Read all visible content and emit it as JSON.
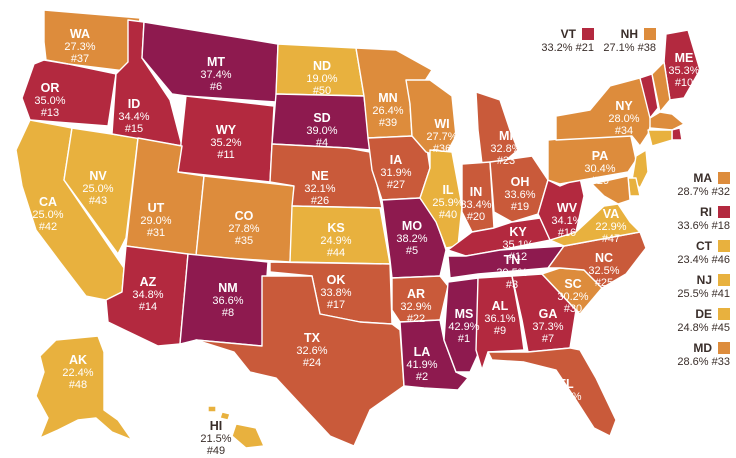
{
  "colors": {
    "lightest": "#e8b13e",
    "light": "#dd8c3c",
    "medium": "#c95a3a",
    "dark": "#b3293f",
    "darkest": "#8e1a4f"
  },
  "states": {
    "WA": {
      "abbr": "WA",
      "value": "27.3%",
      "rank": "#37",
      "tier": "light"
    },
    "OR": {
      "abbr": "OR",
      "value": "35.0%",
      "rank": "#13",
      "tier": "dark"
    },
    "CA": {
      "abbr": "CA",
      "value": "25.0%",
      "rank": "#42",
      "tier": "lightest"
    },
    "ID": {
      "abbr": "ID",
      "value": "34.4%",
      "rank": "#15",
      "tier": "dark"
    },
    "NV": {
      "abbr": "NV",
      "value": "25.0%",
      "rank": "#43",
      "tier": "lightest"
    },
    "MT": {
      "abbr": "MT",
      "value": "37.4%",
      "rank": "#6",
      "tier": "darkest"
    },
    "WY": {
      "abbr": "WY",
      "value": "35.2%",
      "rank": "#11",
      "tier": "dark"
    },
    "UT": {
      "abbr": "UT",
      "value": "29.0%",
      "rank": "#31",
      "tier": "light"
    },
    "AZ": {
      "abbr": "AZ",
      "value": "34.8%",
      "rank": "#14",
      "tier": "dark"
    },
    "CO": {
      "abbr": "CO",
      "value": "27.8%",
      "rank": "#35",
      "tier": "light"
    },
    "NM": {
      "abbr": "NM",
      "value": "36.6%",
      "rank": "#8",
      "tier": "darkest"
    },
    "ND": {
      "abbr": "ND",
      "value": "19.0%",
      "rank": "#50",
      "tier": "lightest"
    },
    "SD": {
      "abbr": "SD",
      "value": "39.0%",
      "rank": "#4",
      "tier": "darkest"
    },
    "NE": {
      "abbr": "NE",
      "value": "32.1%",
      "rank": "#26",
      "tier": "medium"
    },
    "KS": {
      "abbr": "KS",
      "value": "24.9%",
      "rank": "#44",
      "tier": "lightest"
    },
    "OK": {
      "abbr": "OK",
      "value": "33.8%",
      "rank": "#17",
      "tier": "medium"
    },
    "TX": {
      "abbr": "TX",
      "value": "32.6%",
      "rank": "#24",
      "tier": "medium"
    },
    "MN": {
      "abbr": "MN",
      "value": "26.4%",
      "rank": "#39",
      "tier": "light"
    },
    "IA": {
      "abbr": "IA",
      "value": "31.9%",
      "rank": "#27",
      "tier": "medium"
    },
    "MO": {
      "abbr": "MO",
      "value": "38.2%",
      "rank": "#5",
      "tier": "darkest"
    },
    "AR": {
      "abbr": "AR",
      "value": "32.9%",
      "rank": "#22",
      "tier": "medium"
    },
    "LA": {
      "abbr": "LA",
      "value": "41.9%",
      "rank": "#2",
      "tier": "darkest"
    },
    "WI": {
      "abbr": "WI",
      "value": "27.7%",
      "rank": "#36",
      "tier": "light"
    },
    "IL": {
      "abbr": "IL",
      "value": "25.9%",
      "rank": "#40",
      "tier": "lightest"
    },
    "MI": {
      "abbr": "MI",
      "value": "32.8%",
      "rank": "#23",
      "tier": "medium"
    },
    "IN": {
      "abbr": "IN",
      "value": "33.4%",
      "rank": "#20",
      "tier": "medium"
    },
    "OH": {
      "abbr": "OH",
      "value": "33.6%",
      "rank": "#19",
      "tier": "medium"
    },
    "KY": {
      "abbr": "KY",
      "value": "35.1%",
      "rank": "#12",
      "tier": "dark"
    },
    "TN": {
      "abbr": "TN",
      "value": "39.5%",
      "rank": "#3",
      "tier": "darkest"
    },
    "MS": {
      "abbr": "MS",
      "value": "42.9%",
      "rank": "#1",
      "tier": "darkest"
    },
    "AL": {
      "abbr": "AL",
      "value": "36.1%",
      "rank": "#9",
      "tier": "dark"
    },
    "GA": {
      "abbr": "GA",
      "value": "37.3%",
      "rank": "#7",
      "tier": "dark"
    },
    "FL": {
      "abbr": "FL",
      "value": "31.5%",
      "rank": "#28",
      "tier": "medium"
    },
    "SC": {
      "abbr": "SC",
      "value": "30.2%",
      "rank": "#30",
      "tier": "light"
    },
    "NC": {
      "abbr": "NC",
      "value": "32.5%",
      "rank": "#25",
      "tier": "medium"
    },
    "VA": {
      "abbr": "VA",
      "value": "22.9%",
      "rank": "#47",
      "tier": "lightest"
    },
    "WV": {
      "abbr": "WV",
      "value": "34.1%",
      "rank": "#16",
      "tier": "dark"
    },
    "PA": {
      "abbr": "PA",
      "value": "30.4%",
      "rank": "#29",
      "tier": "light"
    },
    "NY": {
      "abbr": "NY",
      "value": "28.0%",
      "rank": "#34",
      "tier": "light"
    },
    "ME": {
      "abbr": "ME",
      "value": "35.3%",
      "rank": "#10",
      "tier": "dark"
    },
    "AK": {
      "abbr": "AK",
      "value": "22.4%",
      "rank": "#48",
      "tier": "lightest"
    },
    "HI": {
      "abbr": "HI",
      "value": "21.5%",
      "rank": "#49",
      "tier": "lightest"
    }
  },
  "small_states": {
    "VT": {
      "abbr": "VT",
      "value": "33.2%",
      "rank": "#21",
      "tier": "dark"
    },
    "NH": {
      "abbr": "NH",
      "value": "27.1%",
      "rank": "#38",
      "tier": "light"
    },
    "MA": {
      "abbr": "MA",
      "value": "28.7%",
      "rank": "#32",
      "tier": "light"
    },
    "RI": {
      "abbr": "RI",
      "value": "33.6%",
      "rank": "#18",
      "tier": "dark"
    },
    "CT": {
      "abbr": "CT",
      "value": "23.4%",
      "rank": "#46",
      "tier": "lightest"
    },
    "NJ": {
      "abbr": "NJ",
      "value": "25.5%",
      "rank": "#41",
      "tier": "lightest"
    },
    "DE": {
      "abbr": "DE",
      "value": "24.8%",
      "rank": "#45",
      "tier": "lightest"
    },
    "MD": {
      "abbr": "MD",
      "value": "28.6%",
      "rank": "#33",
      "tier": "light"
    }
  }
}
